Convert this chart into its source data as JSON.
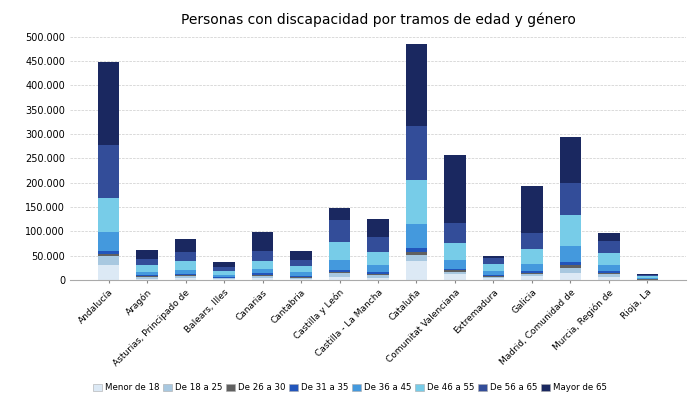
{
  "title": "Personas con discapacidad por tramos de edad y género",
  "regions": [
    "Andalucía",
    "Aragón",
    "Asturias, Principado de",
    "Balears, Illes",
    "Canarias",
    "Cantabria",
    "Castilla y León",
    "Castilla - La Mancha",
    "Cataluña",
    "Comunitat Valenciana",
    "Extremadura",
    "Galicia",
    "Madrid, Comunidad de",
    "Murcia, Región de",
    "Rioja, La"
  ],
  "age_groups": [
    "Menor de 18",
    "De 18 a 25",
    "De 26 a 30",
    "De 31 a 35",
    "De 36 a 45",
    "De 46 a 55",
    "De 56 a 65",
    "Mayor de 65"
  ],
  "colors": [
    "#dce9f5",
    "#a8c8e0",
    "#606060",
    "#2255bb",
    "#4499dd",
    "#77cce8",
    "#334d99",
    "#1a2860"
  ],
  "data_by_age": [
    [
      30000,
      3000,
      4000,
      2000,
      5000,
      2500,
      7000,
      5000,
      40000,
      12000,
      4000,
      8000,
      15000,
      7000,
      500
    ],
    [
      20000,
      3000,
      4000,
      2000,
      4000,
      2500,
      7000,
      5000,
      12000,
      5000,
      2000,
      5000,
      10000,
      5000,
      500
    ],
    [
      4000,
      2000,
      2000,
      1000,
      2000,
      1500,
      3000,
      3000,
      6000,
      3000,
      1500,
      2000,
      5000,
      2500,
      300
    ],
    [
      6000,
      2000,
      2500,
      1500,
      2500,
      2000,
      4500,
      4000,
      8000,
      3500,
      2000,
      3000,
      7000,
      3500,
      400
    ],
    [
      38000,
      7000,
      9000,
      4000,
      9000,
      7000,
      20000,
      14000,
      50000,
      18000,
      8000,
      15000,
      32000,
      13000,
      1500
    ],
    [
      70000,
      13000,
      17000,
      8000,
      17000,
      13000,
      36000,
      27000,
      90000,
      35000,
      15000,
      30000,
      65000,
      25000,
      4000
    ],
    [
      110000,
      13000,
      20000,
      8000,
      20000,
      12000,
      45000,
      30000,
      110000,
      40000,
      13000,
      33000,
      65000,
      25000,
      4000
    ],
    [
      170000,
      18000,
      25000,
      10000,
      40000,
      20000,
      25000,
      38000,
      170000,
      140000,
      4000,
      97000,
      95000,
      15000,
      2000
    ]
  ],
  "ylim": [
    0,
    510000
  ],
  "yticks": [
    0,
    50000,
    100000,
    150000,
    200000,
    250000,
    300000,
    350000,
    400000,
    450000,
    500000
  ],
  "ytick_labels": [
    "0",
    "50.000",
    "100.000",
    "150.000",
    "200.000",
    "250.000",
    "300.000",
    "350.000",
    "400.000",
    "450.000",
    "500.000"
  ],
  "background_color": "#ffffff",
  "grid_color": "#cccccc"
}
